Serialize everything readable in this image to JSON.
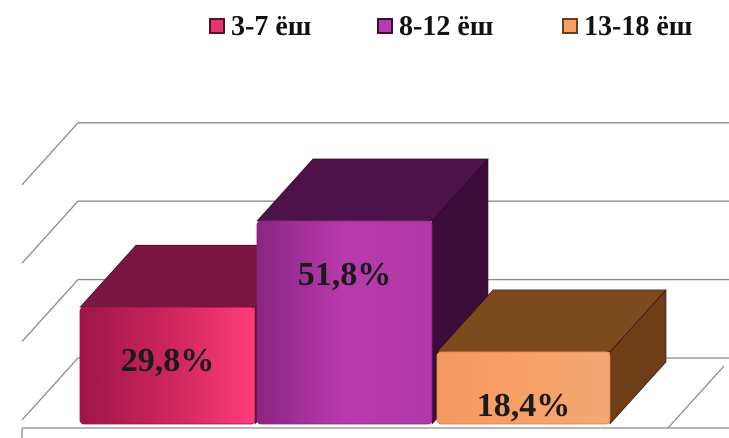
{
  "chart_data": {
    "type": "bar",
    "categories": [
      "3-7 ёш",
      "8-12 ёш",
      "13-18 ёш"
    ],
    "values": [
      29.8,
      51.8,
      18.4
    ],
    "labels": [
      "29,8%",
      "51,8%",
      "18,4%"
    ],
    "unit": "%",
    "ylim": [
      0,
      60
    ],
    "grid": true,
    "three_d": true,
    "legend_position": "top",
    "colors": [
      {
        "front": "#e8346f",
        "dark": "#9e1548",
        "side": "#5a0f2a",
        "top": "#7a1640"
      },
      {
        "front": "#b83aad",
        "dark": "#8a2582",
        "side": "#3b0d38",
        "top": "#4d1249"
      },
      {
        "front": "#f7a066",
        "dark": "#e07f45",
        "side": "#6e3f17",
        "top": "#7d4a1e"
      }
    ]
  }
}
